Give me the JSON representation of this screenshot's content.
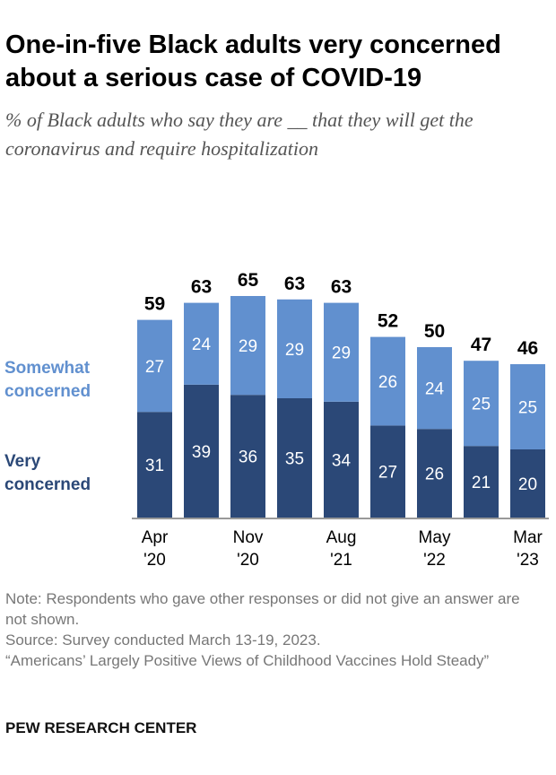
{
  "title": "One-in-five Black adults very concerned about a serious case of COVID-19",
  "subtitle": "% of Black adults who say they are __ that they will get the coronavirus and require hospitalization",
  "chart_data": {
    "type": "bar",
    "stacked": true,
    "categories": [
      "Apr '20",
      "",
      "Nov '20",
      "",
      "Aug '21",
      "",
      "May '22",
      "",
      "Mar '23"
    ],
    "tick_labels": [
      [
        "Apr",
        "'20"
      ],
      null,
      [
        "Nov",
        "'20"
      ],
      null,
      [
        "Aug",
        "'21"
      ],
      null,
      [
        "May",
        "'22"
      ],
      null,
      [
        "Mar",
        "'23"
      ]
    ],
    "series": [
      {
        "name": "Very concerned",
        "label_lines": [
          "Very",
          "concerned"
        ],
        "color": "#2b4877",
        "values": [
          31,
          39,
          36,
          35,
          34,
          27,
          26,
          21,
          20
        ]
      },
      {
        "name": "Somewhat concerned",
        "label_lines": [
          "Somewhat",
          "concerned"
        ],
        "color": "#6190cf",
        "values": [
          27,
          24,
          29,
          29,
          29,
          26,
          24,
          25,
          25
        ]
      }
    ],
    "totals": [
      59,
      63,
      65,
      63,
      63,
      52,
      50,
      47,
      46
    ],
    "legend": "left",
    "grid": false
  },
  "notes": {
    "note": "Note: Respondents who gave other responses or did not give an answer are not shown.",
    "source": "Source: Survey conducted March 13-19, 2023.",
    "report": "“Americans’ Largely Positive Views of Childhood Vaccines Hold Steady”"
  },
  "brand": "PEW RESEARCH CENTER"
}
